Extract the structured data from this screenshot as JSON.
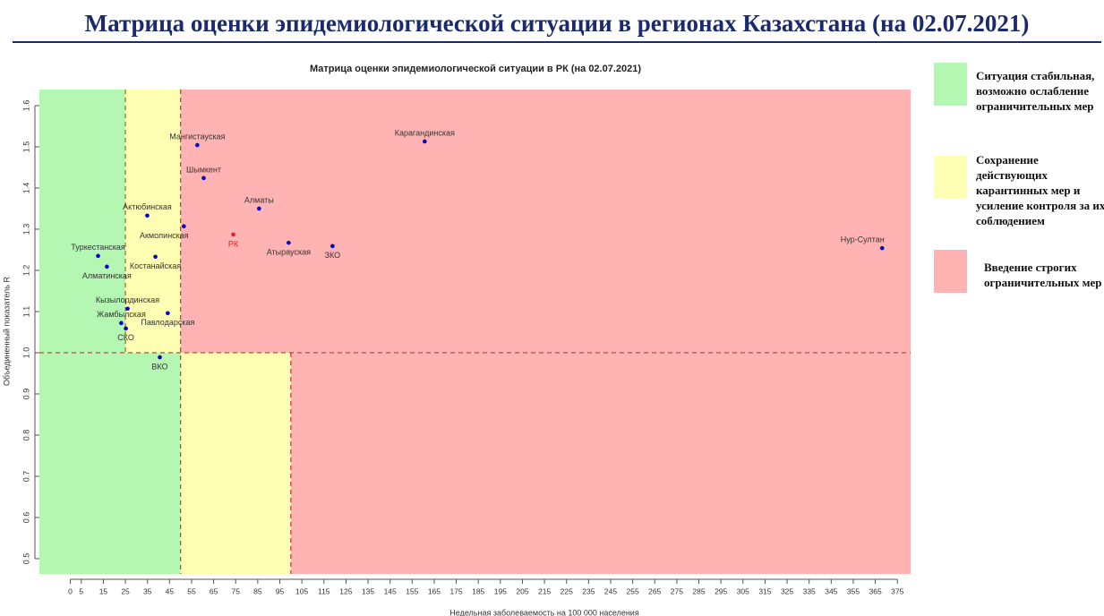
{
  "header": {
    "title": "Матрица оценки эпидемиологической ситуации в регионах Казахстана (на 02.07.2021)"
  },
  "legend": [
    {
      "text": "Ситуация стабильная, возможно ослабление ограничительных мер",
      "color": "#b3f7b3"
    },
    {
      "text": "Сохранение действующих карантинных мер и усиление контроля за их соблюдением",
      "color": "#ffffb3"
    },
    {
      "text": "Введение строгих ограничительных мер",
      "color": "#ffb3b3"
    }
  ],
  "chart_data": {
    "type": "scatter",
    "title": "Матрица оценки эпидемиологической ситуации в РК (на 02.07.2021)",
    "x_label": "Недельная заболеваемость на 100 000 населения",
    "y_label": "Объединенный показатель R",
    "labels": [
      "Туркестанская",
      "Алматинская",
      "Актюбинская",
      "Костанайская",
      "Кызылординская",
      "Жамбылская",
      "СКО",
      "Павлодарская",
      "ВКО",
      "Мангистауская",
      "Шымкент",
      "Акмолинская",
      "РК",
      "Алматы",
      "Атырауская",
      "ЗКО",
      "Карагандинская",
      "Нур-Султан"
    ],
    "x": [
      12.6,
      16.6,
      34.9,
      38.6,
      26.0,
      23.1,
      25.2,
      44.2,
      40.6,
      57.6,
      60.5,
      51.5,
      73.9,
      85.6,
      99.0,
      118.9,
      160.7,
      368.1
    ],
    "y": [
      1.235,
      1.209,
      1.333,
      1.233,
      1.107,
      1.072,
      1.059,
      1.096,
      0.989,
      1.504,
      1.424,
      1.307,
      1.287,
      1.35,
      1.267,
      1.259,
      1.513,
      1.254
    ],
    "colors": [
      "#0000cc",
      "#0000cc",
      "#0000cc",
      "#0000cc",
      "#0000cc",
      "#0000cc",
      "#0000cc",
      "#0000cc",
      "#0000cc",
      "#0000cc",
      "#0000cc",
      "#0000cc",
      "#e02020",
      "#0000cc",
      "#0000cc",
      "#0000cc",
      "#0000cc",
      "#0000cc"
    ],
    "thresholds": {
      "y": 1,
      "x_above": [
        25,
        50
      ],
      "x_below": [
        50,
        100
      ]
    },
    "zone_colors": [
      "#b3f7b3",
      "#ffffb3",
      "#ffb3b3"
    ],
    "xlim": [
      -14,
      381
    ],
    "ylim": [
      0.463,
      1.639
    ],
    "xticks": [
      0,
      5,
      15,
      25,
      35,
      45,
      55,
      65,
      75,
      85,
      95,
      105,
      115,
      125,
      135,
      145,
      155,
      165,
      175,
      185,
      195,
      205,
      215,
      225,
      235,
      245,
      255,
      265,
      275,
      285,
      295,
      305,
      315,
      325,
      335,
      345,
      355,
      365,
      375
    ],
    "yticks": [
      0.5,
      0.6,
      0.7,
      0.8,
      0.9,
      {
        "value": 1,
        "label": "1.0"
      },
      1.1,
      1.2,
      1.3,
      1.4,
      1.5,
      1.6
    ]
  }
}
